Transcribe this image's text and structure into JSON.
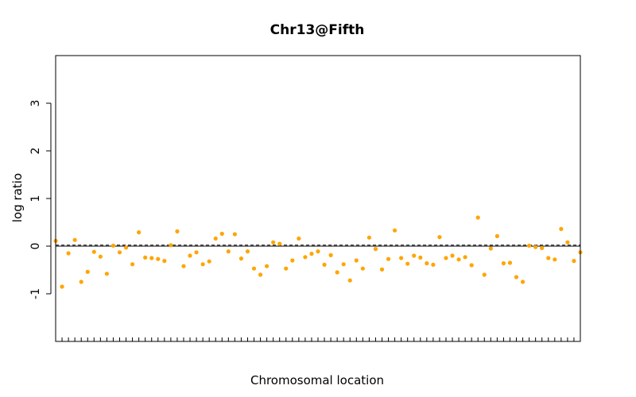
{
  "chart_data": {
    "type": "scatter",
    "title": "Chr13@Fifth",
    "xlabel": "Chromosomal location",
    "ylabel": "log ratio",
    "ylim": [
      -2.0,
      4.0
    ],
    "yticks": [
      -1,
      0,
      1,
      2,
      3
    ],
    "grid": false,
    "point_color": "#ffa500",
    "reference_lines": [
      {
        "y": 0.0,
        "style": "solid"
      },
      {
        "y": 0.02,
        "style": "dashed"
      }
    ],
    "series": [
      {
        "values": [
          0.11,
          -0.85,
          -0.15,
          0.13,
          -0.75,
          -0.54,
          -0.12,
          -0.22,
          -0.58,
          0.01,
          -0.13,
          -0.03,
          -0.38,
          0.29,
          -0.24,
          -0.25,
          -0.27,
          -0.31,
          0.02,
          0.31,
          -0.42,
          -0.2,
          -0.13,
          -0.38,
          -0.32,
          0.16,
          0.26,
          -0.11,
          0.25,
          -0.26,
          -0.11,
          -0.47,
          -0.6,
          -0.42,
          0.08,
          0.05,
          -0.47,
          -0.3,
          0.16,
          -0.23,
          -0.16,
          -0.11,
          -0.39,
          -0.19,
          -0.55,
          -0.38,
          -0.72,
          -0.3,
          -0.47,
          0.18,
          -0.06,
          -0.49,
          -0.27,
          0.33,
          -0.25,
          -0.37,
          -0.2,
          -0.24,
          -0.36,
          -0.39,
          0.19,
          -0.25,
          -0.2,
          -0.28,
          -0.23,
          -0.4,
          0.6,
          -0.6,
          -0.05,
          0.21,
          -0.36,
          -0.35,
          -0.65,
          -0.75,
          0.01,
          -0.02,
          -0.04,
          -0.25,
          -0.28,
          0.36,
          0.08,
          -0.31,
          -0.13
        ]
      }
    ]
  }
}
